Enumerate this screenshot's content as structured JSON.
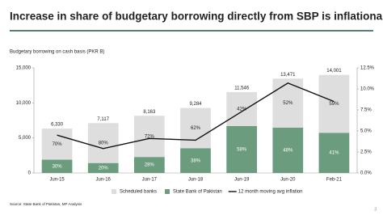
{
  "chart_data": {
    "type": "bar",
    "title": "Increase in share of budgetary borrowing directly from SBP is inflationary",
    "subtitle": "Budgetary borrowing on cash basis (PKR B)",
    "source": "Source: State Bank of Pakistan, MP Analysis",
    "page_number": "3",
    "stacked": true,
    "categories": [
      "Jun-15",
      "Jun-16",
      "Jun-17",
      "Jun-18",
      "Jun-19",
      "Jun-20",
      "Feb-21"
    ],
    "series": [
      {
        "name": "Scheduled banks",
        "color": "#dedede",
        "values": [
          4431,
          5694,
          5877,
          5756,
          4849,
          7005,
          8261
        ],
        "shares": [
          "70%",
          "80%",
          "72%",
          "62%",
          "42%",
          "52%",
          "59%"
        ]
      },
      {
        "name": "State Bank of Pakistan",
        "color": "#6c9c7e",
        "values": [
          1899,
          1423,
          2286,
          3528,
          6697,
          6466,
          5740
        ],
        "shares": [
          "30%",
          "20%",
          "28%",
          "38%",
          "58%",
          "48%",
          "41%"
        ]
      },
      {
        "name": "12 month moving avg inflation",
        "type": "line",
        "axis": "y2",
        "color": "#111111",
        "values": [
          4.5,
          2.9,
          4.1,
          3.9,
          7.3,
          10.7,
          8.5
        ]
      }
    ],
    "totals": [
      {
        "value": 6330,
        "label": "6,330"
      },
      {
        "value": 7117,
        "label": "7,117"
      },
      {
        "value": 8163,
        "label": "8,163"
      },
      {
        "value": 9284,
        "label": "9,284"
      },
      {
        "value": 11546,
        "label": "11,546"
      },
      {
        "value": 13471,
        "label": "13,471"
      },
      {
        "value": 14001,
        "label": "14,001"
      }
    ],
    "ylim": [
      0,
      15000
    ],
    "yticks": [
      0,
      {
        "value": 5000,
        "label": "5,000"
      },
      {
        "value": 10000,
        "label": "10,000"
      },
      {
        "value": 15000,
        "label": "15,000"
      }
    ],
    "y2lim": [
      0,
      12.5
    ],
    "y2ticks": [
      {
        "value": 0,
        "label": "0.0%"
      },
      {
        "value": 2.5,
        "label": "2.5%"
      },
      {
        "value": 5,
        "label": "5.0%"
      },
      {
        "value": 7.5,
        "label": "7.5%"
      },
      {
        "value": 10,
        "label": "10.0%"
      },
      {
        "value": 12.5,
        "label": "12.5%"
      }
    ],
    "legend": "bottom"
  }
}
